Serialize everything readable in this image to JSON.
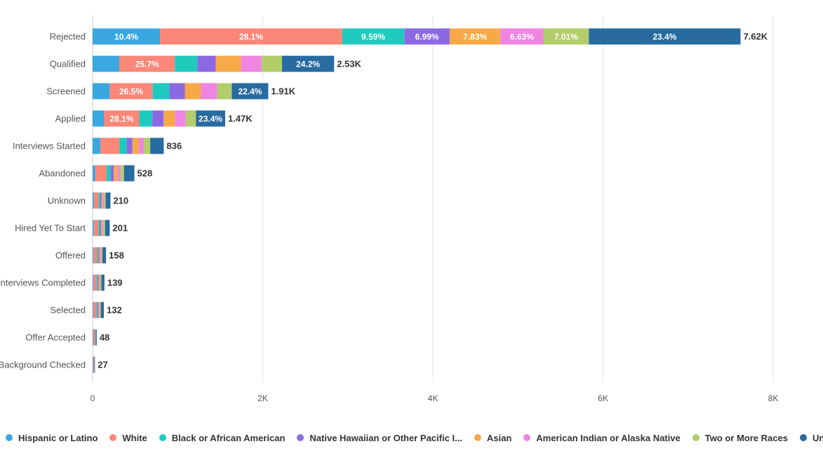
{
  "chart_data": {
    "type": "bar",
    "orientation": "horizontal",
    "stacked": true,
    "title": "",
    "xlabel": "",
    "ylabel": "",
    "xlim": [
      0,
      8000
    ],
    "x_ticks": [
      0,
      2000,
      4000,
      6000,
      8000
    ],
    "x_tick_labels": [
      "0",
      "2K",
      "4K",
      "6K",
      "8K"
    ],
    "grid": true,
    "legend_position": "bottom",
    "categories": [
      "Rejected",
      "Qualified",
      "Screened",
      "Applied",
      "Interviews Started",
      "Abandoned",
      "Unknown",
      "Hired Yet To Start",
      "Offered",
      "Interviews Completed",
      "Selected",
      "Offer Accepted",
      "Background Checked"
    ],
    "totals": [
      7620,
      2530,
      1910,
      1470,
      836,
      528,
      210,
      201,
      158,
      139,
      132,
      48,
      27
    ],
    "total_labels": [
      "7.62K",
      "2.53K",
      "1.91K",
      "1.47K",
      "836",
      "528",
      "210",
      "201",
      "158",
      "139",
      "132",
      "48",
      "27"
    ],
    "series": [
      {
        "name": "Hispanic or Latino",
        "color": "#3aa7e0",
        "percent": [
          10.4,
          12.5,
          10.5,
          9.2,
          11.0,
          6.0,
          7.0,
          7.0,
          6.0,
          7.0,
          6.0,
          6.0,
          7.0
        ],
        "labels": [
          "10.4%",
          "",
          "",
          "",
          "",
          "",
          "",
          "",
          "",
          "",
          "",
          "",
          ""
        ]
      },
      {
        "name": "White",
        "color": "#fa8777",
        "percent": [
          28.1,
          25.7,
          26.5,
          28.1,
          27.0,
          25.0,
          27.0,
          27.0,
          28.0,
          28.0,
          28.0,
          29.0,
          26.0
        ],
        "labels": [
          "28.1%",
          "25.7%",
          "26.5%",
          "28.1%",
          "",
          "",
          "",
          "",
          "",
          "",
          "",
          "",
          ""
        ]
      },
      {
        "name": "Black or African American",
        "color": "#1ecbbd",
        "percent": [
          9.59,
          10.5,
          10.3,
          10.5,
          10.0,
          9.0,
          9.0,
          9.0,
          9.0,
          9.0,
          9.0,
          9.0,
          9.0
        ],
        "labels": [
          "9.59%",
          "",
          "",
          "",
          "",
          "",
          "",
          "",
          "",
          "",
          "",
          "",
          ""
        ]
      },
      {
        "name": "Native Hawaiian or Other Pacific I...",
        "color": "#8c69e3",
        "percent": [
          6.99,
          8.5,
          9.5,
          9.0,
          8.0,
          7.0,
          7.0,
          7.0,
          7.0,
          7.0,
          7.0,
          7.0,
          7.0
        ],
        "labels": [
          "6.99%",
          "",
          "",
          "",
          "",
          "",
          "",
          "",
          "",
          "",
          "",
          "",
          ""
        ]
      },
      {
        "name": "Asian",
        "color": "#f7a948",
        "percent": [
          7.83,
          11.8,
          9.9,
          9.0,
          9.0,
          8.0,
          8.0,
          8.0,
          8.0,
          8.0,
          8.0,
          8.0,
          8.0
        ],
        "labels": [
          "7.83%",
          "",
          "",
          "",
          "",
          "",
          "",
          "",
          "",
          "",
          "",
          "",
          ""
        ]
      },
      {
        "name": "American Indian or Alaska Native",
        "color": "#f084e3",
        "percent": [
          6.63,
          9.5,
          10.0,
          8.6,
          7.0,
          7.0,
          7.0,
          7.0,
          7.0,
          7.0,
          7.0,
          7.0,
          7.0
        ],
        "labels": [
          "6.63%",
          "",
          "",
          "",
          "",
          "",
          "",
          "",
          "",
          "",
          "",
          "",
          ""
        ]
      },
      {
        "name": "Two or More Races",
        "color": "#b2cd6a",
        "percent": [
          7.01,
          9.5,
          9.0,
          8.2,
          9.0,
          8.0,
          8.0,
          8.0,
          8.0,
          8.0,
          8.0,
          8.0,
          8.0
        ],
        "labels": [
          "7.01%",
          "",
          "",
          "",
          "",
          "",
          "",
          "",
          "",
          "",
          "",
          "",
          ""
        ]
      },
      {
        "name": "Unknown",
        "color": "#276ba1",
        "percent": [
          23.4,
          24.2,
          22.4,
          23.4,
          19.0,
          23.0,
          27.0,
          27.0,
          27.0,
          26.0,
          27.0,
          26.0,
          28.0
        ],
        "labels": [
          "23.4%",
          "24.2%",
          "22.4%",
          "23.4%",
          "",
          "",
          "",
          "",
          "",
          "",
          "",
          "",
          ""
        ]
      }
    ]
  }
}
